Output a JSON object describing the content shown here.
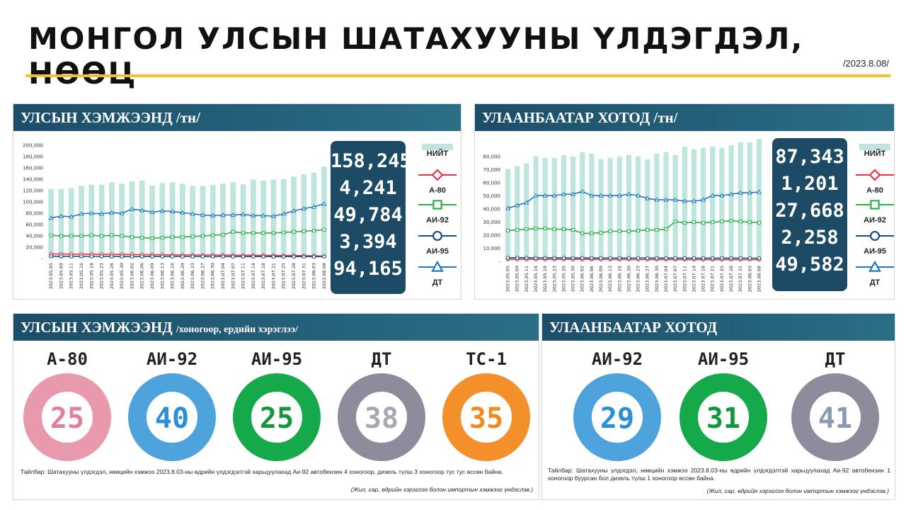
{
  "page": {
    "title": "МОНГОЛ УЛСЫН ШАТАХУУНЫ ҮЛДЭГДЭЛ, НӨӨЦ",
    "date": "/2023.8.08/"
  },
  "colors": {
    "total": "#bfe6de",
    "a80": "#e8344a",
    "ai92": "#2bb14a",
    "ai95": "#1d4f7c",
    "dt": "#1f78c1",
    "header": "#1c4d69",
    "rule": "#f2c42c"
  },
  "national_chart": {
    "title": "УЛСЫН ХЭМЖЭЭНД /тн/",
    "totals": [
      "158,245",
      "4,241",
      "49,784",
      "3,394",
      "94,165"
    ],
    "legend": [
      "НИЙТ",
      "А-80",
      "АИ-92",
      "АИ-95",
      "ДТ"
    ]
  },
  "ub_chart": {
    "title": "УЛААНБААТАР ХОТОД /тн/",
    "totals": [
      "87,343",
      "1,201",
      "27,668",
      "2,258",
      "49,582"
    ],
    "legend": [
      "НИЙТ",
      "А-80",
      "АИ-92",
      "АИ-95",
      "ДТ"
    ]
  },
  "chart_data": [
    {
      "type": "bar",
      "title": "УЛСЫН ХЭМЖЭЭНД /тн/",
      "ylim": [
        0,
        200000
      ],
      "yticks": [
        "200,000",
        "180,000",
        "160,000",
        "140,000",
        "120,000",
        "100,000",
        "80,000",
        "60,000",
        "40,000",
        "20,000",
        "-"
      ],
      "categories": [
        "2023.05.05",
        "2023.05.09",
        "2023.05.11",
        "2023.05.16",
        "2023.05.18",
        "2023.05.23",
        "2023.05.26",
        "2023.05.30",
        "2023.06.02",
        "2023.06.06",
        "2023.06.09",
        "2023.06.13",
        "2023.06.16",
        "2023.06.20",
        "2023.06.23",
        "2023.06.27",
        "2023.06.30",
        "2023.07.04",
        "2023.07.07",
        "2023.07.11",
        "2023.07.14",
        "2023.07.18",
        "2023.07.21",
        "2023.07.25",
        "2023.07.28",
        "2023.07.31",
        "2023.08.03",
        "2023.08.08"
      ],
      "series": [
        {
          "name": "НИЙТ",
          "kind": "bar",
          "values": [
            120000,
            120000,
            121000,
            125000,
            127000,
            127000,
            131000,
            129000,
            133000,
            134000,
            126000,
            130000,
            131000,
            129000,
            125000,
            125000,
            127000,
            129000,
            131000,
            128000,
            136000,
            134000,
            136000,
            137000,
            141000,
            145000,
            148000,
            158245
          ]
        },
        {
          "name": "А-80",
          "kind": "line",
          "values": [
            8000,
            7800,
            7600,
            7600,
            7500,
            7300,
            7200,
            7100,
            7000,
            6800,
            6600,
            6400,
            6300,
            6200,
            6100,
            6000,
            6000,
            5900,
            5800,
            5700,
            5600,
            5500,
            5400,
            5300,
            5200,
            5000,
            4800,
            4241
          ]
        },
        {
          "name": "АИ-92",
          "kind": "line",
          "values": [
            40000,
            39000,
            39000,
            39000,
            40000,
            39000,
            40000,
            39000,
            37000,
            36000,
            35000,
            36000,
            37000,
            37000,
            38000,
            39000,
            40000,
            41000,
            46000,
            44000,
            44000,
            44000,
            44000,
            45000,
            46000,
            47000,
            48000,
            49784
          ]
        },
        {
          "name": "АИ-95",
          "kind": "line",
          "values": [
            4000,
            3900,
            3900,
            3800,
            3800,
            3800,
            3700,
            3700,
            3600,
            3600,
            3600,
            3600,
            3500,
            3500,
            3500,
            3500,
            3500,
            3500,
            3400,
            3400,
            3400,
            3400,
            3400,
            3400,
            3400,
            3400,
            3400,
            3394
          ]
        },
        {
          "name": "ДТ",
          "kind": "line",
          "values": [
            70000,
            73000,
            72000,
            77000,
            78000,
            77000,
            79000,
            78000,
            85000,
            83000,
            80000,
            82000,
            81000,
            79000,
            77000,
            75000,
            74000,
            75000,
            75000,
            76000,
            74000,
            74000,
            73000,
            77000,
            82000,
            86000,
            89000,
            94165
          ]
        }
      ]
    },
    {
      "type": "bar",
      "title": "УЛААНБААТАР ХОТОД /тн/",
      "ylim": [
        0,
        85000
      ],
      "yticks": [
        "80,000",
        "70,000",
        "60,000",
        "50,000",
        "40,000",
        "30,000",
        "20,000",
        "10,000",
        "-"
      ],
      "categories": [
        "2023.05.05",
        "2023.05.09",
        "2023.05.11",
        "2023.05.16",
        "2023.05.18",
        "2023.05.23",
        "2023.05.26",
        "2023.05.30",
        "2023.06.02",
        "2023.06.06",
        "2023.06.09",
        "2023.06.13",
        "2023.06.16",
        "2023.06.20",
        "2023.06.23",
        "2023.06.27",
        "2023.06.30",
        "2023.07.04",
        "2023.07.07",
        "2023.07.11",
        "2023.07.14",
        "2023.07.18",
        "2023.07.21",
        "2023.07.25",
        "2023.07.28",
        "2023.07.31",
        "2023.08.03",
        "2023.08.08"
      ],
      "series": [
        {
          "name": "НИЙТ",
          "kind": "bar",
          "values": [
            66000,
            68000,
            70000,
            75000,
            74000,
            74000,
            76000,
            75000,
            78000,
            77000,
            73000,
            74000,
            75000,
            76000,
            75000,
            73000,
            77000,
            78000,
            76000,
            82000,
            80000,
            81000,
            82000,
            81000,
            83000,
            85000,
            85000,
            87343
          ]
        },
        {
          "name": "А-80",
          "kind": "line",
          "values": [
            1500,
            1500,
            1500,
            1450,
            1450,
            1450,
            1400,
            1400,
            1400,
            1400,
            1350,
            1350,
            1350,
            1350,
            1300,
            1300,
            1300,
            1300,
            1300,
            1250,
            1250,
            1250,
            1250,
            1250,
            1250,
            1200,
            1200,
            1201
          ]
        },
        {
          "name": "АИ-92",
          "kind": "line",
          "values": [
            22000,
            22500,
            23000,
            23500,
            23500,
            23000,
            23000,
            22500,
            20000,
            20000,
            20500,
            21500,
            21500,
            21500,
            22000,
            22500,
            22500,
            23000,
            28500,
            27500,
            28000,
            27500,
            28000,
            28500,
            29000,
            28500,
            28000,
            27668
          ]
        },
        {
          "name": "АИ-95",
          "kind": "line",
          "values": [
            2600,
            2600,
            2550,
            2550,
            2500,
            2500,
            2500,
            2450,
            2450,
            2450,
            2400,
            2400,
            2400,
            2400,
            2400,
            2350,
            2350,
            2350,
            2350,
            2300,
            2300,
            2300,
            2300,
            2300,
            2300,
            2300,
            2280,
            2258
          ]
        },
        {
          "name": "ДТ",
          "kind": "line",
          "values": [
            38000,
            40000,
            42000,
            47000,
            47000,
            47000,
            48000,
            48000,
            50000,
            47000,
            47000,
            47000,
            47000,
            48000,
            47000,
            45000,
            44000,
            44000,
            44000,
            43000,
            43000,
            44000,
            47000,
            47000,
            48000,
            49000,
            49000,
            49582
          ]
        }
      ]
    },
    {
      "type": "pie",
      "title": "УЛСЫН ХЭМЖЭЭНД /хоногоор, ердийн хэрэглээ/",
      "categories": [
        "А-80",
        "АИ-92",
        "АИ-95",
        "ДТ",
        "ТС-1"
      ],
      "values": [
        25,
        40,
        25,
        38,
        35
      ]
    },
    {
      "type": "pie",
      "title": "УЛААНБААТАР ХОТОД",
      "categories": [
        "АИ-92",
        "АИ-95",
        "ДТ"
      ],
      "values": [
        29,
        31,
        41
      ]
    }
  ],
  "days_national": {
    "title": "УЛСЫН ХЭМЖЭЭНД",
    "subtitle": "/хоногоор, ердийн хэрэглээ/",
    "items": [
      {
        "label": "А-80",
        "value": "25",
        "ring": "#e899ac",
        "text": "#e07f98"
      },
      {
        "label": "АИ-92",
        "value": "40",
        "ring": "#4fa3dd",
        "text": "#2c8fd6"
      },
      {
        "label": "АИ-95",
        "value": "25",
        "ring": "#16a94a",
        "text": "#13963f"
      },
      {
        "label": "ДТ",
        "value": "38",
        "ring": "#8c8c9c",
        "text": "#a8a8b4"
      },
      {
        "label": "ТС-1",
        "value": "35",
        "ring": "#f4902a",
        "text": "#f08a20"
      }
    ],
    "note": "Тайлбар: Шатахууны үлдэгдэл, нөөцийн хэмжээ 2023.8.03-ны өдрийн үлдэгдэлтэй харьцуулахад Аи-92 автобензин 4 хоногоор, дизель түлш 3 хоногоор тус тус өссөн байна.",
    "source": "(Жил, сар, өдрийн хэрэглээ болон импортын хэмжээг үндэслэв.)"
  },
  "days_ub": {
    "title": "УЛААНБААТАР ХОТОД",
    "items": [
      {
        "label": "АИ-92",
        "value": "29",
        "ring": "#4fa3dd",
        "text": "#2c8fd6"
      },
      {
        "label": "АИ-95",
        "value": "31",
        "ring": "#16a94a",
        "text": "#13963f"
      },
      {
        "label": "ДТ",
        "value": "41",
        "ring": "#8c8c9c",
        "text": "#8a9ab4"
      }
    ],
    "note": "Тайлбар: Шатахууны үлдэгдэл, нөөцийн хэмжээ 2023.8.03-ны өдрийн үлдэгдэлтэй харьцуулахад Аи-92 автобензин 1 хоногоор буурсан бол дизель түлш 1 хоногоор өссөн байна.",
    "source": "(Жил, сар, өдрийн хэрэглээ болон импортын хэмжээг үндэслэв.)"
  }
}
